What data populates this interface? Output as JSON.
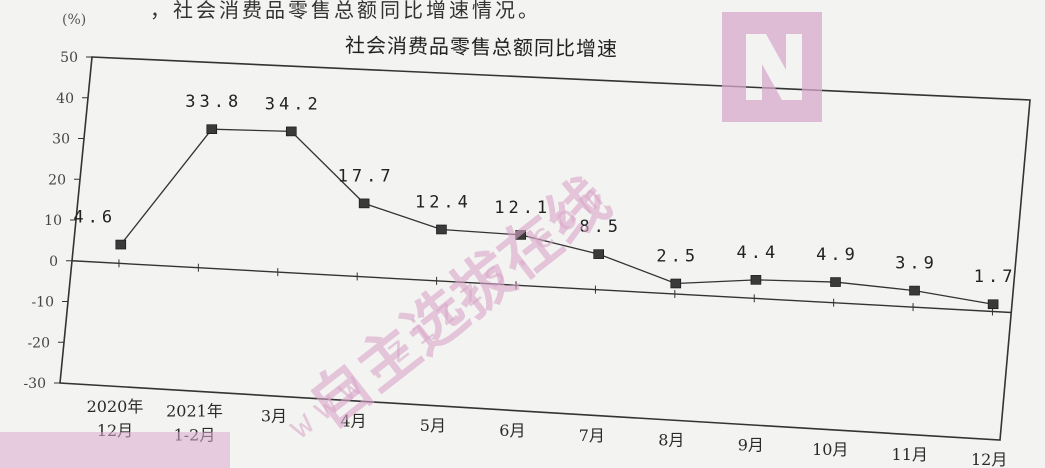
{
  "header_fragment": "，社会消费品零售总额同比增速情况。",
  "chart_data": {
    "type": "line",
    "title": "社会消费品零售总额同比增速",
    "unit": "(%)",
    "x": [
      "2020年12月",
      "2021年1-2月",
      "3月",
      "4月",
      "5月",
      "6月",
      "7月",
      "8月",
      "9月",
      "10月",
      "11月",
      "12月"
    ],
    "x_tick_lines": [
      [
        "2020年",
        "12月"
      ],
      [
        "2021年",
        "1-2月"
      ],
      [
        "3月"
      ],
      [
        "4月"
      ],
      [
        "5月"
      ],
      [
        "6月"
      ],
      [
        "7月"
      ],
      [
        "8月"
      ],
      [
        "9月"
      ],
      [
        "10月"
      ],
      [
        "11月"
      ],
      [
        "12月"
      ]
    ],
    "series": [
      {
        "values": [
          4.6,
          33.8,
          34.2,
          17.7,
          12.4,
          12.1,
          8.5,
          2.5,
          4.4,
          4.9,
          3.9,
          1.7
        ]
      }
    ],
    "value_labels": [
      "4.6",
      "33.8",
      "34.2",
      "17.7",
      "12.4",
      "12.1",
      "8.5",
      "2.5",
      "4.4",
      "4.9",
      "3.9",
      "1.7"
    ],
    "yticks": [
      50,
      40,
      30,
      20,
      10,
      0,
      -10,
      -20,
      -30
    ],
    "ylim": [
      -30,
      50
    ],
    "grid": false,
    "colors": {
      "line": "#333333",
      "marker": "#3a3a3a"
    }
  },
  "watermark": {
    "url": "www.zizzs.com",
    "brand": "自主选拔在线",
    "color": "#d9a6c9"
  }
}
